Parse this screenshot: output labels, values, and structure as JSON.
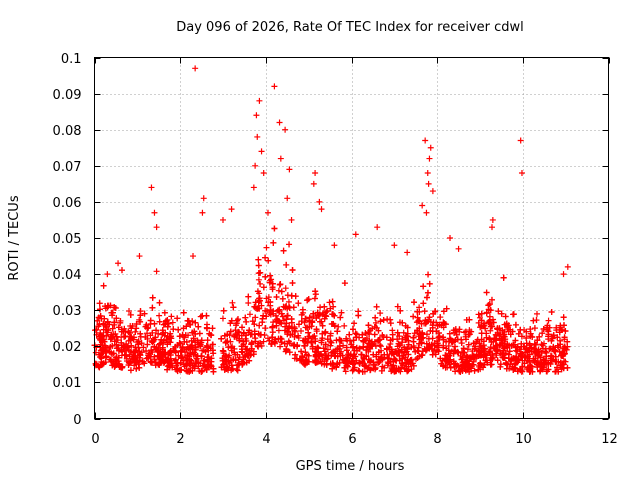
{
  "chart_data": {
    "type": "scatter",
    "title": "Day 096 of 2026, Rate Of TEC Index for receiver cdwl",
    "xlabel": "GPS time / hours",
    "ylabel": "ROTI / TECUs",
    "xlim": [
      0,
      12
    ],
    "ylim": [
      0,
      0.1
    ],
    "xticks": [
      0,
      2,
      4,
      6,
      8,
      10,
      12
    ],
    "yticks": [
      0,
      0.01,
      0.02,
      0.03,
      0.04,
      0.05,
      0.06,
      0.07,
      0.08,
      0.09,
      0.1
    ],
    "grid": true,
    "marker": "+",
    "color": "#ff0000",
    "series": [
      {
        "name": "ROTI",
        "notable_points": [
          [
            2.35,
            0.097
          ],
          [
            4.2,
            0.092
          ],
          [
            3.85,
            0.088
          ],
          [
            3.78,
            0.084
          ],
          [
            4.32,
            0.082
          ],
          [
            4.45,
            0.08
          ],
          [
            3.8,
            0.078
          ],
          [
            3.9,
            0.074
          ],
          [
            4.35,
            0.072
          ],
          [
            4.55,
            0.069
          ],
          [
            3.75,
            0.07
          ],
          [
            3.95,
            0.068
          ],
          [
            3.72,
            0.064
          ],
          [
            1.33,
            0.064
          ],
          [
            4.5,
            0.061
          ],
          [
            2.55,
            0.061
          ],
          [
            5.15,
            0.068
          ],
          [
            5.12,
            0.065
          ],
          [
            5.25,
            0.06
          ],
          [
            5.3,
            0.058
          ],
          [
            7.72,
            0.077
          ],
          [
            7.85,
            0.075
          ],
          [
            7.82,
            0.072
          ],
          [
            7.78,
            0.068
          ],
          [
            7.8,
            0.065
          ],
          [
            7.65,
            0.059
          ],
          [
            7.75,
            0.057
          ],
          [
            7.9,
            0.063
          ],
          [
            9.95,
            0.077
          ],
          [
            9.98,
            0.068
          ],
          [
            9.3,
            0.055
          ],
          [
            9.28,
            0.053
          ],
          [
            2.52,
            0.057
          ],
          [
            1.4,
            0.057
          ],
          [
            1.45,
            0.053
          ],
          [
            2.3,
            0.045
          ],
          [
            3.2,
            0.058
          ],
          [
            3.0,
            0.055
          ],
          [
            4.05,
            0.057
          ],
          [
            4.6,
            0.055
          ],
          [
            1.05,
            0.045
          ],
          [
            6.1,
            0.051
          ],
          [
            6.6,
            0.053
          ],
          [
            7.0,
            0.048
          ],
          [
            7.3,
            0.046
          ],
          [
            8.3,
            0.05
          ],
          [
            8.5,
            0.047
          ],
          [
            10.95,
            0.04
          ],
          [
            11.05,
            0.042
          ],
          [
            0.3,
            0.04
          ],
          [
            0.55,
            0.043
          ],
          [
            5.6,
            0.048
          ]
        ]
      }
    ]
  }
}
